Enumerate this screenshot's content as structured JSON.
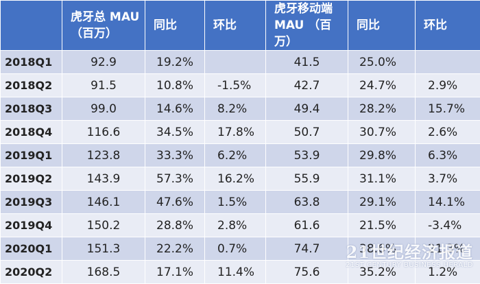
{
  "headers": {
    "corner": "",
    "total_mau_line1": "虎牙总 MAU",
    "total_mau_line2": "（百万）",
    "yoy": "同比",
    "qoq": "环比",
    "mobile_mau_line1": "虎牙移动端",
    "mobile_mau_line2": "MAU （百万）",
    "mobile_yoy": "同比",
    "mobile_qoq": "环比"
  },
  "rows": [
    {
      "quarter": "2018Q1",
      "total_mau": "92.9",
      "yoy": "19.2%",
      "qoq": "",
      "mobile_mau": "41.5",
      "mobile_yoy": "25.0%",
      "mobile_qoq": ""
    },
    {
      "quarter": "2018Q2",
      "total_mau": "91.5",
      "yoy": "10.8%",
      "qoq": "-1.5%",
      "mobile_mau": "42.7",
      "mobile_yoy": "24.7%",
      "mobile_qoq": "2.9%"
    },
    {
      "quarter": "2018Q3",
      "total_mau": "99.0",
      "yoy": "14.6%",
      "qoq": "8.2%",
      "mobile_mau": "49.4",
      "mobile_yoy": "28.2%",
      "mobile_qoq": "15.7%"
    },
    {
      "quarter": "2018Q4",
      "total_mau": "116.6",
      "yoy": "34.5%",
      "qoq": "17.8%",
      "mobile_mau": "50.7",
      "mobile_yoy": "30.7%",
      "mobile_qoq": "2.6%"
    },
    {
      "quarter": "2019Q1",
      "total_mau": "123.8",
      "yoy": "33.3%",
      "qoq": "6.2%",
      "mobile_mau": "53.9",
      "mobile_yoy": "29.8%",
      "mobile_qoq": "6.3%"
    },
    {
      "quarter": "2019Q2",
      "total_mau": "143.9",
      "yoy": "57.3%",
      "qoq": "16.2%",
      "mobile_mau": "55.9",
      "mobile_yoy": "31.1%",
      "mobile_qoq": "3.7%"
    },
    {
      "quarter": "2019Q3",
      "total_mau": "146.1",
      "yoy": "47.6%",
      "qoq": "1.5%",
      "mobile_mau": "63.8",
      "mobile_yoy": "29.1%",
      "mobile_qoq": "14.1%"
    },
    {
      "quarter": "2019Q4",
      "total_mau": "150.2",
      "yoy": "28.8%",
      "qoq": "2.8%",
      "mobile_mau": "61.6",
      "mobile_yoy": "21.5%",
      "mobile_qoq": "-3.4%"
    },
    {
      "quarter": "2020Q1",
      "total_mau": "151.3",
      "yoy": "22.2%",
      "qoq": "0.7%",
      "mobile_mau": "74.7",
      "mobile_yoy": "38.6%",
      "mobile_qoq": "21.3%"
    },
    {
      "quarter": "2020Q2",
      "total_mau": "168.5",
      "yoy": "17.1%",
      "qoq": "11.4%",
      "mobile_mau": "75.6",
      "mobile_yoy": "35.2%",
      "mobile_qoq": "1.2%"
    }
  ],
  "colors": {
    "header_bg": "#4472c4",
    "row_odd": "#cfd6ea",
    "row_even": "#e9ecf5",
    "text": "#222222"
  },
  "watermark": {
    "main": "21世纪经济报道",
    "sub": "21ST CENTURY BUSINESS HERALD"
  }
}
